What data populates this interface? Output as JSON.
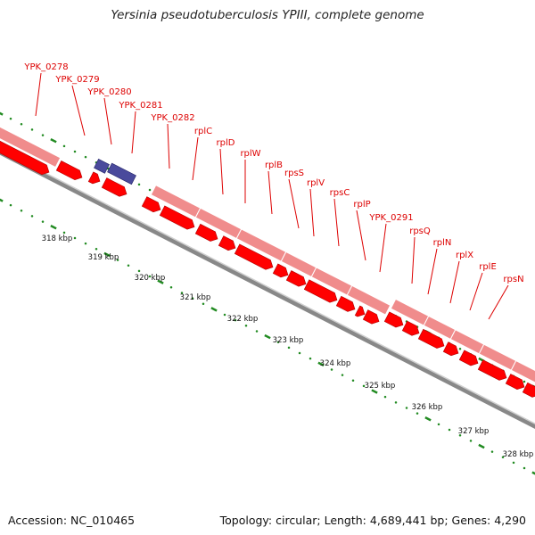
{
  "title": "Yersinia pseudotuberculosis YPIII, complete genome",
  "footer": {
    "accession": "Accession: NC_010465",
    "summary": "Topology: circular; Length: 4,689,441 bp; Genes: 4,290"
  },
  "colors": {
    "gene": "#ff0000",
    "gene_dark": "#b00000",
    "cds_band": "#f08c8c",
    "trna": "#4a4a9c",
    "backbone": "#888888",
    "tick": "#228b22",
    "label": "#dd0000"
  },
  "genes": [
    "YPK_0278",
    "YPK_0279",
    "YPK_0280",
    "YPK_0281",
    "YPK_0282",
    "rplC",
    "rplD",
    "rplW",
    "rplB",
    "rpsS",
    "rplV",
    "rpsC",
    "rplP",
    "YPK_0291",
    "rpsQ",
    "rplN",
    "rplX",
    "rplE",
    "rpsN"
  ],
  "ticks": [
    "318 kbp",
    "319 kbp",
    "320 kbp",
    "321 kbp",
    "322 kbp",
    "323 kbp",
    "324 kbp",
    "325 kbp",
    "326 kbp",
    "327 kbp",
    "328 kbp"
  ]
}
